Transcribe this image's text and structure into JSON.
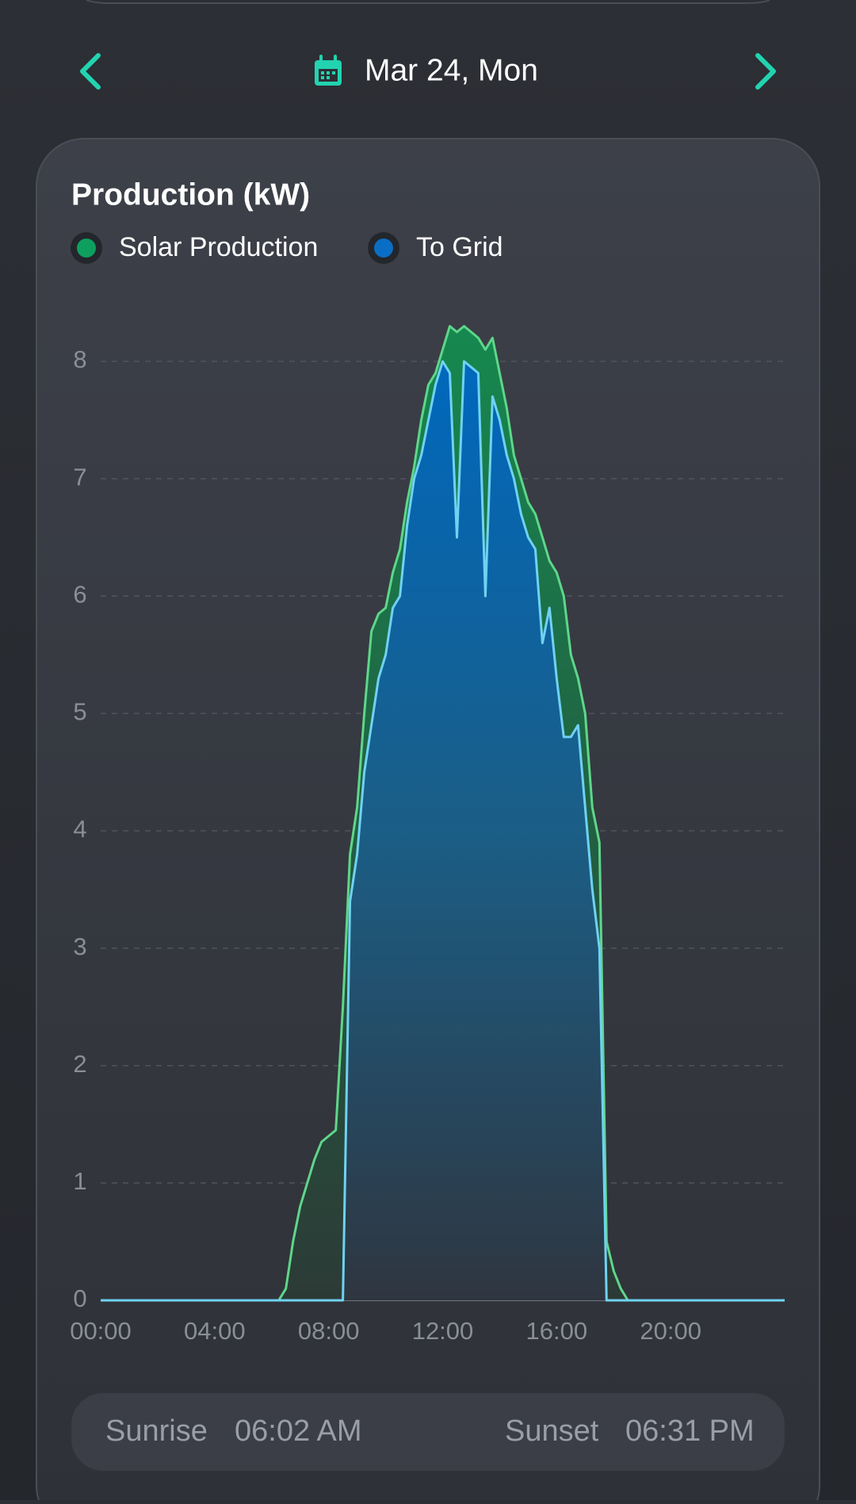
{
  "header": {
    "date": "Mar 24, Mon"
  },
  "chart_data": {
    "type": "area",
    "title": "Production (kW)",
    "x": [
      0,
      6,
      6.25,
      6.5,
      6.75,
      7,
      7.25,
      7.5,
      7.75,
      8,
      8.25,
      8.5,
      8.75,
      9,
      9.25,
      9.5,
      9.75,
      10,
      10.25,
      10.5,
      10.75,
      11,
      11.25,
      11.5,
      11.75,
      12,
      12.25,
      12.5,
      12.75,
      13,
      13.25,
      13.5,
      13.75,
      14,
      14.25,
      14.5,
      14.75,
      15,
      15.25,
      15.5,
      15.75,
      16,
      16.25,
      16.5,
      16.75,
      17,
      17.25,
      17.5,
      17.75,
      18,
      18.25,
      18.5,
      24
    ],
    "series": [
      {
        "name": "Solar Production",
        "color": "#5fd68a",
        "values": [
          0,
          0,
          0,
          0.1,
          0.5,
          0.8,
          1.0,
          1.2,
          1.35,
          1.4,
          1.45,
          2.5,
          3.8,
          4.2,
          5.0,
          5.7,
          5.85,
          5.9,
          6.2,
          6.4,
          6.8,
          7.1,
          7.5,
          7.8,
          7.9,
          8.1,
          8.3,
          8.25,
          8.3,
          8.25,
          8.2,
          8.1,
          8.2,
          7.9,
          7.6,
          7.2,
          7.0,
          6.8,
          6.7,
          6.5,
          6.3,
          6.2,
          6.0,
          5.5,
          5.3,
          5.0,
          4.2,
          3.9,
          0.5,
          0.25,
          0.1,
          0,
          0
        ]
      },
      {
        "name": "To Grid",
        "color": "#6fd2f2",
        "values": [
          0,
          0,
          0,
          0,
          0,
          0,
          0,
          0,
          0,
          0,
          0,
          0,
          3.4,
          3.8,
          4.5,
          4.9,
          5.3,
          5.5,
          5.9,
          6.0,
          6.6,
          7.0,
          7.2,
          7.5,
          7.8,
          8.0,
          7.9,
          6.5,
          8.0,
          7.95,
          7.9,
          6.0,
          7.7,
          7.5,
          7.2,
          7.0,
          6.7,
          6.5,
          6.4,
          5.6,
          5.9,
          5.3,
          4.8,
          4.8,
          4.9,
          4.2,
          3.5,
          3.0,
          0,
          0,
          0,
          0,
          0
        ]
      }
    ],
    "xlim": [
      0,
      24
    ],
    "xticks": [
      {
        "value": 0,
        "label": "00:00"
      },
      {
        "value": 4,
        "label": "04:00"
      },
      {
        "value": 8,
        "label": "08:00"
      },
      {
        "value": 12,
        "label": "12:00"
      },
      {
        "value": 16,
        "label": "16:00"
      },
      {
        "value": 20,
        "label": "20:00"
      }
    ],
    "ylim": [
      0,
      8.6
    ],
    "yticks": [
      0,
      1,
      2,
      3,
      4,
      5,
      6,
      7,
      8
    ],
    "grid": true
  },
  "footer": {
    "sunrise_label": "Sunrise",
    "sunrise": "06:02 AM",
    "sunset_label": "Sunset",
    "sunset": "06:31 PM"
  }
}
